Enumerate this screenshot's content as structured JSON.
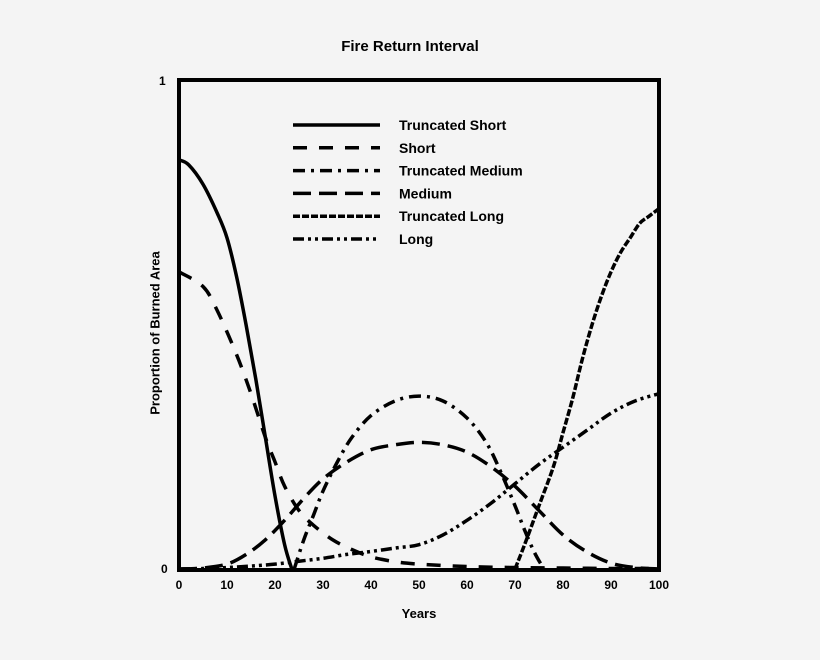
{
  "chart_data": {
    "type": "line",
    "title": "Fire Return Interval",
    "xlabel": "Years",
    "ylabel": "Proportion of Burned Area",
    "xlim": [
      0,
      100
    ],
    "ylim": [
      0,
      1
    ],
    "x_ticks": [
      "0",
      "10",
      "20",
      "30",
      "40",
      "50",
      "60",
      "70",
      "80",
      "90",
      "100"
    ],
    "y_ticks": [
      "0",
      "1"
    ],
    "grid": false,
    "legend_position": "upper center (inside plot)",
    "series": [
      {
        "name": "Truncated Short",
        "style": "solid",
        "x": [
          0,
          2,
          5,
          8,
          10,
          12,
          14,
          16,
          18,
          20,
          22,
          23.5
        ],
        "y": [
          0.84,
          0.83,
          0.79,
          0.73,
          0.68,
          0.6,
          0.5,
          0.39,
          0.27,
          0.15,
          0.05,
          0
        ]
      },
      {
        "name": "Short",
        "style": "dashed",
        "x": [
          0,
          5,
          8,
          12,
          15,
          18,
          20,
          22,
          25,
          28,
          32,
          36,
          40,
          45,
          50,
          60,
          70,
          80,
          90,
          100
        ],
        "y": [
          0.61,
          0.58,
          0.53,
          0.44,
          0.36,
          0.27,
          0.22,
          0.17,
          0.12,
          0.09,
          0.06,
          0.04,
          0.025,
          0.015,
          0.01,
          0.005,
          0.003,
          0.002,
          0.001,
          0.001
        ]
      },
      {
        "name": "Truncated Medium",
        "style": "dash-dot",
        "x": [
          24,
          26,
          28,
          30,
          33,
          36,
          40,
          45,
          50,
          55,
          60,
          64,
          67,
          70,
          72,
          74,
          76
        ],
        "y": [
          0,
          0.06,
          0.11,
          0.16,
          0.22,
          0.27,
          0.315,
          0.345,
          0.355,
          0.345,
          0.31,
          0.26,
          0.2,
          0.13,
          0.08,
          0.035,
          0
        ]
      },
      {
        "name": "Medium",
        "style": "long-dash",
        "x": [
          0,
          5,
          10,
          14,
          18,
          22,
          26,
          30,
          35,
          40,
          45,
          50,
          55,
          60,
          65,
          70,
          75,
          80,
          85,
          90,
          95,
          100
        ],
        "y": [
          0,
          0.002,
          0.01,
          0.03,
          0.06,
          0.1,
          0.145,
          0.185,
          0.22,
          0.245,
          0.255,
          0.26,
          0.255,
          0.24,
          0.21,
          0.17,
          0.12,
          0.07,
          0.035,
          0.012,
          0.003,
          0
        ]
      },
      {
        "name": "Truncated Long",
        "style": "dense-dash",
        "x": [
          70,
          72,
          75,
          78,
          80,
          82,
          84,
          86,
          88,
          90,
          92,
          94,
          96,
          98,
          100
        ],
        "y": [
          0,
          0.05,
          0.13,
          0.21,
          0.28,
          0.35,
          0.43,
          0.5,
          0.56,
          0.61,
          0.65,
          0.68,
          0.71,
          0.725,
          0.74
        ]
      },
      {
        "name": "Long",
        "style": "dash-dot-dot",
        "x": [
          0,
          5,
          10,
          15,
          20,
          25,
          30,
          35,
          40,
          45,
          50,
          55,
          60,
          65,
          70,
          75,
          80,
          85,
          90,
          95,
          100
        ],
        "y": [
          0,
          0.001,
          0.003,
          0.006,
          0.01,
          0.016,
          0.022,
          0.03,
          0.036,
          0.043,
          0.05,
          0.07,
          0.1,
          0.135,
          0.175,
          0.215,
          0.25,
          0.285,
          0.32,
          0.345,
          0.36
        ]
      }
    ]
  },
  "labels": {
    "title": "Fire Return Interval",
    "xlabel": "Years",
    "ylabel": "Proportion of Burned Area",
    "y_tick_0": "0",
    "y_tick_1": "1"
  },
  "legend": [
    {
      "label": "Truncated Short"
    },
    {
      "label": "Short"
    },
    {
      "label": "Truncated Medium"
    },
    {
      "label": "Medium"
    },
    {
      "label": "Truncated Long"
    },
    {
      "label": "Long"
    }
  ],
  "colors": {
    "background": "#f4f4f4",
    "ink": "#000000"
  }
}
